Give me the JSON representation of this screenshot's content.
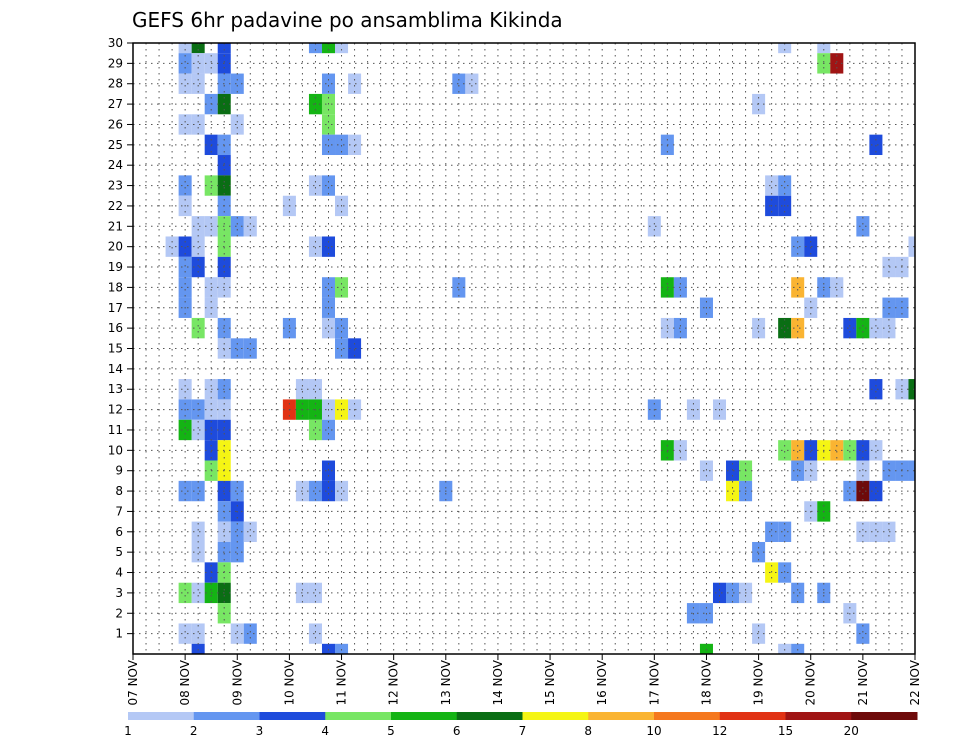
{
  "chart_data": {
    "type": "heatmap",
    "title": "GEFS 6hr padavine po ansamblima Kikinda",
    "xlabel": "",
    "ylabel": "",
    "x_tick_labels": [
      "07 NOV",
      "08 NOV",
      "09 NOV",
      "10 NOV",
      "11 NOV",
      "12 NOV",
      "13 NOV",
      "14 NOV",
      "15 NOV",
      "16 NOV",
      "17 NOV",
      "18 NOV",
      "19 NOV",
      "20 NOV",
      "21 NOV",
      "22 NOV"
    ],
    "y_tick_labels": [
      "1",
      "2",
      "3",
      "4",
      "5",
      "6",
      "7",
      "8",
      "9",
      "10",
      "11",
      "12",
      "13",
      "14",
      "15",
      "16",
      "17",
      "18",
      "19",
      "20",
      "21",
      "22",
      "23",
      "24",
      "25",
      "26",
      "27",
      "28",
      "29",
      "30"
    ],
    "x_range_days": [
      0,
      15
    ],
    "y_range": [
      0,
      30
    ],
    "time_step_hours": 6,
    "grid": true,
    "legend_position": "bottom",
    "color_bins": [
      {
        "lower": 1,
        "color": "#b4c8f5"
      },
      {
        "lower": 2,
        "color": "#6496f0"
      },
      {
        "lower": 3,
        "color": "#1e4bdc"
      },
      {
        "lower": 4,
        "color": "#78e664"
      },
      {
        "lower": 5,
        "color": "#14b414"
      },
      {
        "lower": 6,
        "color": "#0a6e14"
      },
      {
        "lower": 7,
        "color": "#f5f514"
      },
      {
        "lower": 8,
        "color": "#fab432"
      },
      {
        "lower": 10,
        "color": "#f5781e"
      },
      {
        "lower": 12,
        "color": "#e13214"
      },
      {
        "lower": 15,
        "color": "#a01414"
      },
      {
        "lower": 20,
        "color": "#6e0a0a"
      }
    ],
    "legend_labels": [
      "1",
      "2",
      "3",
      "4",
      "5",
      "6",
      "7",
      "8",
      "10",
      "12",
      "15",
      "20"
    ],
    "cells_note": "each cell = [time step index (6h steps from 07 NOV 00Z), ensemble member, bin index into color_bins]",
    "cells": [
      [
        4,
        30,
        0
      ],
      [
        5,
        30,
        5
      ],
      [
        7,
        30,
        2
      ],
      [
        14,
        30,
        1
      ],
      [
        15,
        30,
        4
      ],
      [
        16,
        30,
        0
      ],
      [
        50,
        30,
        0
      ],
      [
        53,
        30,
        0
      ],
      [
        4,
        29,
        1
      ],
      [
        5,
        29,
        0
      ],
      [
        6,
        29,
        0
      ],
      [
        7,
        29,
        2
      ],
      [
        53,
        29,
        3
      ],
      [
        54,
        29,
        10
      ],
      [
        4,
        28,
        0
      ],
      [
        5,
        28,
        0
      ],
      [
        7,
        28,
        1
      ],
      [
        8,
        28,
        1
      ],
      [
        15,
        28,
        1
      ],
      [
        17,
        28,
        0
      ],
      [
        25,
        28,
        1
      ],
      [
        26,
        28,
        0
      ],
      [
        6,
        27,
        1
      ],
      [
        7,
        27,
        5
      ],
      [
        14,
        27,
        4
      ],
      [
        15,
        27,
        3
      ],
      [
        48,
        27,
        0
      ],
      [
        4,
        26,
        0
      ],
      [
        5,
        26,
        0
      ],
      [
        8,
        26,
        0
      ],
      [
        15,
        26,
        3
      ],
      [
        6,
        25,
        2
      ],
      [
        7,
        25,
        1
      ],
      [
        15,
        25,
        1
      ],
      [
        16,
        25,
        1
      ],
      [
        17,
        25,
        0
      ],
      [
        41,
        25,
        1
      ],
      [
        57,
        25,
        2
      ],
      [
        7,
        24,
        2
      ],
      [
        4,
        23,
        1
      ],
      [
        6,
        23,
        3
      ],
      [
        7,
        23,
        5
      ],
      [
        14,
        23,
        0
      ],
      [
        15,
        23,
        1
      ],
      [
        49,
        23,
        0
      ],
      [
        50,
        23,
        1
      ],
      [
        4,
        22,
        0
      ],
      [
        7,
        22,
        1
      ],
      [
        12,
        22,
        0
      ],
      [
        16,
        22,
        0
      ],
      [
        49,
        22,
        2
      ],
      [
        50,
        22,
        2
      ],
      [
        5,
        21,
        0
      ],
      [
        6,
        21,
        0
      ],
      [
        7,
        21,
        3
      ],
      [
        8,
        21,
        1
      ],
      [
        9,
        21,
        0
      ],
      [
        40,
        21,
        0
      ],
      [
        56,
        21,
        1
      ],
      [
        3,
        20,
        0
      ],
      [
        4,
        20,
        2
      ],
      [
        5,
        20,
        0
      ],
      [
        7,
        20,
        3
      ],
      [
        14,
        20,
        0
      ],
      [
        15,
        20,
        2
      ],
      [
        51,
        20,
        1
      ],
      [
        52,
        20,
        2
      ],
      [
        60,
        20,
        0
      ],
      [
        4,
        19,
        1
      ],
      [
        5,
        19,
        2
      ],
      [
        7,
        19,
        2
      ],
      [
        58,
        19,
        0
      ],
      [
        59,
        19,
        0
      ],
      [
        4,
        18,
        1
      ],
      [
        6,
        18,
        0
      ],
      [
        7,
        18,
        0
      ],
      [
        15,
        18,
        1
      ],
      [
        16,
        18,
        3
      ],
      [
        25,
        18,
        1
      ],
      [
        41,
        18,
        4
      ],
      [
        42,
        18,
        1
      ],
      [
        51,
        18,
        7
      ],
      [
        53,
        18,
        1
      ],
      [
        54,
        18,
        0
      ],
      [
        4,
        17,
        1
      ],
      [
        6,
        17,
        0
      ],
      [
        15,
        17,
        1
      ],
      [
        44,
        17,
        1
      ],
      [
        52,
        17,
        0
      ],
      [
        58,
        17,
        1
      ],
      [
        59,
        17,
        1
      ],
      [
        5,
        16,
        3
      ],
      [
        7,
        16,
        1
      ],
      [
        12,
        16,
        1
      ],
      [
        15,
        16,
        0
      ],
      [
        16,
        16,
        1
      ],
      [
        41,
        16,
        0
      ],
      [
        42,
        16,
        1
      ],
      [
        48,
        16,
        0
      ],
      [
        50,
        16,
        5
      ],
      [
        51,
        16,
        7
      ],
      [
        55,
        16,
        2
      ],
      [
        56,
        16,
        4
      ],
      [
        57,
        16,
        0
      ],
      [
        58,
        16,
        0
      ],
      [
        7,
        15,
        0
      ],
      [
        8,
        15,
        1
      ],
      [
        9,
        15,
        1
      ],
      [
        16,
        15,
        1
      ],
      [
        17,
        15,
        2
      ],
      [
        4,
        13,
        0
      ],
      [
        6,
        13,
        0
      ],
      [
        7,
        13,
        1
      ],
      [
        13,
        13,
        0
      ],
      [
        14,
        13,
        0
      ],
      [
        57,
        13,
        2
      ],
      [
        59,
        13,
        0
      ],
      [
        60,
        13,
        5
      ],
      [
        4,
        12,
        1
      ],
      [
        5,
        12,
        1
      ],
      [
        6,
        12,
        0
      ],
      [
        7,
        12,
        0
      ],
      [
        12,
        12,
        9
      ],
      [
        13,
        12,
        4
      ],
      [
        14,
        12,
        4
      ],
      [
        15,
        12,
        0
      ],
      [
        16,
        12,
        6
      ],
      [
        17,
        12,
        0
      ],
      [
        40,
        12,
        1
      ],
      [
        43,
        12,
        0
      ],
      [
        45,
        12,
        0
      ],
      [
        4,
        11,
        4
      ],
      [
        5,
        11,
        0
      ],
      [
        6,
        11,
        2
      ],
      [
        7,
        11,
        2
      ],
      [
        14,
        11,
        3
      ],
      [
        15,
        11,
        1
      ],
      [
        6,
        10,
        2
      ],
      [
        7,
        10,
        6
      ],
      [
        41,
        10,
        4
      ],
      [
        42,
        10,
        0
      ],
      [
        50,
        10,
        3
      ],
      [
        51,
        10,
        7
      ],
      [
        52,
        10,
        2
      ],
      [
        53,
        10,
        6
      ],
      [
        54,
        10,
        7
      ],
      [
        55,
        10,
        3
      ],
      [
        56,
        10,
        2
      ],
      [
        57,
        10,
        0
      ],
      [
        6,
        9,
        3
      ],
      [
        7,
        9,
        6
      ],
      [
        15,
        9,
        2
      ],
      [
        44,
        9,
        0
      ],
      [
        46,
        9,
        2
      ],
      [
        47,
        9,
        3
      ],
      [
        51,
        9,
        1
      ],
      [
        52,
        9,
        0
      ],
      [
        56,
        9,
        0
      ],
      [
        58,
        9,
        1
      ],
      [
        59,
        9,
        1
      ],
      [
        60,
        9,
        1
      ],
      [
        4,
        8,
        1
      ],
      [
        5,
        8,
        1
      ],
      [
        7,
        8,
        2
      ],
      [
        8,
        8,
        1
      ],
      [
        13,
        8,
        0
      ],
      [
        14,
        8,
        1
      ],
      [
        15,
        8,
        2
      ],
      [
        16,
        8,
        0
      ],
      [
        24,
        8,
        1
      ],
      [
        46,
        8,
        6
      ],
      [
        47,
        8,
        1
      ],
      [
        55,
        8,
        1
      ],
      [
        56,
        8,
        11
      ],
      [
        57,
        8,
        2
      ],
      [
        7,
        7,
        1
      ],
      [
        8,
        7,
        2
      ],
      [
        52,
        7,
        0
      ],
      [
        53,
        7,
        4
      ],
      [
        5,
        6,
        0
      ],
      [
        7,
        6,
        0
      ],
      [
        8,
        6,
        1
      ],
      [
        9,
        6,
        0
      ],
      [
        49,
        6,
        1
      ],
      [
        50,
        6,
        1
      ],
      [
        56,
        6,
        0
      ],
      [
        57,
        6,
        0
      ],
      [
        58,
        6,
        0
      ],
      [
        5,
        5,
        0
      ],
      [
        7,
        5,
        1
      ],
      [
        8,
        5,
        1
      ],
      [
        48,
        5,
        1
      ],
      [
        6,
        4,
        2
      ],
      [
        7,
        4,
        3
      ],
      [
        49,
        4,
        6
      ],
      [
        50,
        4,
        1
      ],
      [
        4,
        3,
        3
      ],
      [
        5,
        3,
        0
      ],
      [
        6,
        3,
        4
      ],
      [
        7,
        3,
        5
      ],
      [
        13,
        3,
        0
      ],
      [
        14,
        3,
        0
      ],
      [
        45,
        3,
        2
      ],
      [
        46,
        3,
        1
      ],
      [
        47,
        3,
        0
      ],
      [
        51,
        3,
        1
      ],
      [
        53,
        3,
        1
      ],
      [
        7,
        2,
        3
      ],
      [
        43,
        2,
        1
      ],
      [
        44,
        2,
        1
      ],
      [
        55,
        2,
        0
      ],
      [
        4,
        1,
        0
      ],
      [
        5,
        1,
        0
      ],
      [
        8,
        1,
        0
      ],
      [
        9,
        1,
        1
      ],
      [
        14,
        1,
        0
      ],
      [
        48,
        1,
        0
      ],
      [
        56,
        1,
        1
      ],
      [
        5,
        0,
        2
      ],
      [
        15,
        0,
        2
      ],
      [
        16,
        0,
        1
      ],
      [
        44,
        0,
        4
      ],
      [
        50,
        0,
        0
      ],
      [
        51,
        0,
        1
      ]
    ]
  }
}
